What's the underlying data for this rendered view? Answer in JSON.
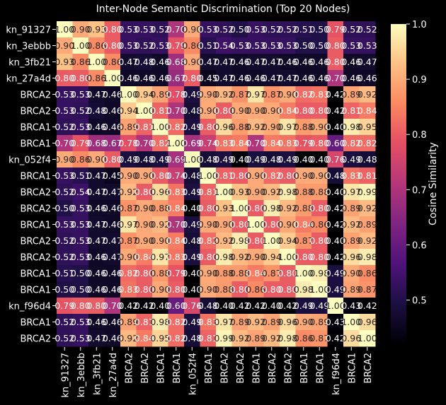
{
  "chart_data": {
    "type": "heatmap",
    "title": "Inter-Node Semantic Discrimination (Top 20 Nodes)",
    "colorbar_label": "Cosine Similarity",
    "colormap": "magma",
    "value_range": [
      0.42,
      1.0
    ],
    "colorbar_ticks": [
      "0.5",
      "0.6",
      "0.7",
      "0.8",
      "0.9",
      "1.0"
    ],
    "background": "#000000",
    "labels": [
      "kn_91327",
      "kn_3ebbb",
      "kn_3fb21",
      "kn_27a4d",
      "BRCA2",
      "BRCA2",
      "BRCA1",
      "BRCA1",
      "kn_052f4",
      "BRCA1",
      "BRCA2",
      "BRCA2",
      "BRCA1",
      "BRCA2",
      "BRCA2",
      "BRCA1",
      "BRCA1",
      "kn_f96d4",
      "BRCA1",
      "BRCA2"
    ],
    "matrix": [
      [
        1.0,
        0.9,
        0.93,
        0.8,
        0.53,
        0.53,
        0.52,
        0.7,
        0.9,
        0.53,
        0.52,
        0.5,
        0.53,
        0.52,
        0.52,
        0.51,
        0.5,
        0.79,
        0.52,
        0.52
      ],
      [
        0.9,
        1.0,
        0.86,
        0.8,
        0.53,
        0.52,
        0.53,
        0.79,
        0.86,
        0.51,
        0.54,
        0.53,
        0.53,
        0.53,
        0.53,
        0.5,
        0.5,
        0.8,
        0.53,
        0.53
      ],
      [
        0.93,
        0.86,
        1.0,
        0.86,
        0.47,
        0.48,
        0.46,
        0.68,
        0.9,
        0.47,
        0.47,
        0.46,
        0.47,
        0.47,
        0.46,
        0.46,
        0.46,
        0.8,
        0.46,
        0.47
      ],
      [
        0.8,
        0.8,
        0.86,
        1.0,
        0.46,
        0.46,
        0.46,
        0.67,
        0.8,
        0.45,
        0.47,
        0.46,
        0.46,
        0.47,
        0.47,
        0.46,
        0.46,
        0.7,
        0.46,
        0.46
      ],
      [
        0.53,
        0.53,
        0.47,
        0.46,
        1.0,
        0.94,
        0.89,
        0.78,
        0.49,
        0.9,
        0.92,
        0.87,
        0.97,
        0.87,
        0.9,
        0.82,
        0.83,
        0.42,
        0.89,
        0.92
      ],
      [
        0.53,
        0.52,
        0.48,
        0.46,
        0.94,
        1.0,
        0.81,
        0.7,
        0.48,
        0.9,
        0.8,
        0.9,
        0.9,
        0.9,
        0.84,
        0.8,
        0.8,
        0.42,
        0.81,
        0.84
      ],
      [
        0.52,
        0.53,
        0.46,
        0.46,
        0.89,
        0.81,
        1.0,
        0.82,
        0.49,
        0.8,
        0.96,
        0.88,
        0.92,
        0.9,
        0.97,
        0.88,
        0.9,
        0.4,
        0.98,
        0.95
      ],
      [
        0.7,
        0.79,
        0.68,
        0.67,
        0.78,
        0.7,
        0.82,
        1.0,
        0.69,
        0.74,
        0.83,
        0.84,
        0.7,
        0.84,
        0.83,
        0.79,
        0.8,
        0.6,
        0.82,
        0.82
      ],
      [
        0.9,
        0.86,
        0.9,
        0.8,
        0.49,
        0.48,
        0.49,
        0.69,
        1.0,
        0.48,
        0.49,
        0.4,
        0.49,
        0.48,
        0.49,
        0.4,
        0.4,
        0.76,
        0.49,
        0.48
      ],
      [
        0.53,
        0.51,
        0.47,
        0.45,
        0.9,
        0.9,
        0.8,
        0.74,
        0.48,
        1.0,
        0.81,
        0.8,
        0.9,
        0.82,
        0.8,
        0.9,
        0.9,
        0.48,
        0.83,
        0.81
      ],
      [
        0.52,
        0.54,
        0.47,
        0.47,
        0.92,
        0.8,
        0.96,
        0.83,
        0.49,
        0.81,
        1.0,
        0.93,
        0.9,
        0.92,
        0.98,
        0.88,
        0.88,
        0.4,
        0.97,
        0.99
      ],
      [
        0.5,
        0.53,
        0.46,
        0.46,
        0.87,
        0.9,
        0.88,
        0.84,
        0.4,
        0.8,
        0.93,
        1.0,
        0.8,
        0.98,
        0.92,
        0.88,
        0.8,
        0.42,
        0.89,
        0.92
      ],
      [
        0.53,
        0.53,
        0.47,
        0.46,
        0.97,
        0.9,
        0.92,
        0.7,
        0.49,
        0.9,
        0.9,
        0.8,
        1.0,
        0.8,
        0.9,
        0.84,
        0.86,
        0.42,
        0.92,
        0.89
      ],
      [
        0.52,
        0.53,
        0.47,
        0.47,
        0.87,
        0.9,
        0.9,
        0.84,
        0.48,
        0.82,
        0.92,
        0.98,
        0.8,
        1.0,
        0.94,
        0.87,
        0.8,
        0.4,
        0.89,
        0.92
      ],
      [
        0.52,
        0.53,
        0.46,
        0.47,
        0.9,
        0.84,
        0.97,
        0.83,
        0.49,
        0.8,
        0.98,
        0.92,
        0.9,
        0.94,
        1.0,
        0.8,
        0.8,
        0.42,
        0.96,
        0.98
      ],
      [
        0.51,
        0.5,
        0.46,
        0.46,
        0.82,
        0.8,
        0.88,
        0.79,
        0.4,
        0.9,
        0.88,
        0.88,
        0.84,
        0.87,
        0.8,
        1.0,
        0.98,
        0.49,
        0.9,
        0.86
      ],
      [
        0.5,
        0.5,
        0.46,
        0.46,
        0.83,
        0.8,
        0.9,
        0.8,
        0.4,
        0.9,
        0.88,
        0.8,
        0.86,
        0.8,
        0.8,
        0.98,
        1.0,
        0.49,
        0.89,
        0.87
      ],
      [
        0.79,
        0.8,
        0.8,
        0.7,
        0.42,
        0.42,
        0.4,
        0.6,
        0.76,
        0.48,
        0.4,
        0.42,
        0.42,
        0.4,
        0.42,
        0.49,
        0.49,
        1.0,
        0.43,
        0.42
      ],
      [
        0.52,
        0.53,
        0.46,
        0.46,
        0.89,
        0.81,
        0.98,
        0.82,
        0.49,
        0.83,
        0.97,
        0.89,
        0.92,
        0.89,
        0.96,
        0.9,
        0.89,
        0.43,
        1.0,
        0.96
      ],
      [
        0.52,
        0.53,
        0.47,
        0.46,
        0.92,
        0.84,
        0.95,
        0.82,
        0.48,
        0.81,
        0.99,
        0.92,
        0.89,
        0.92,
        0.98,
        0.86,
        0.87,
        0.42,
        0.96,
        1.0
      ]
    ]
  }
}
